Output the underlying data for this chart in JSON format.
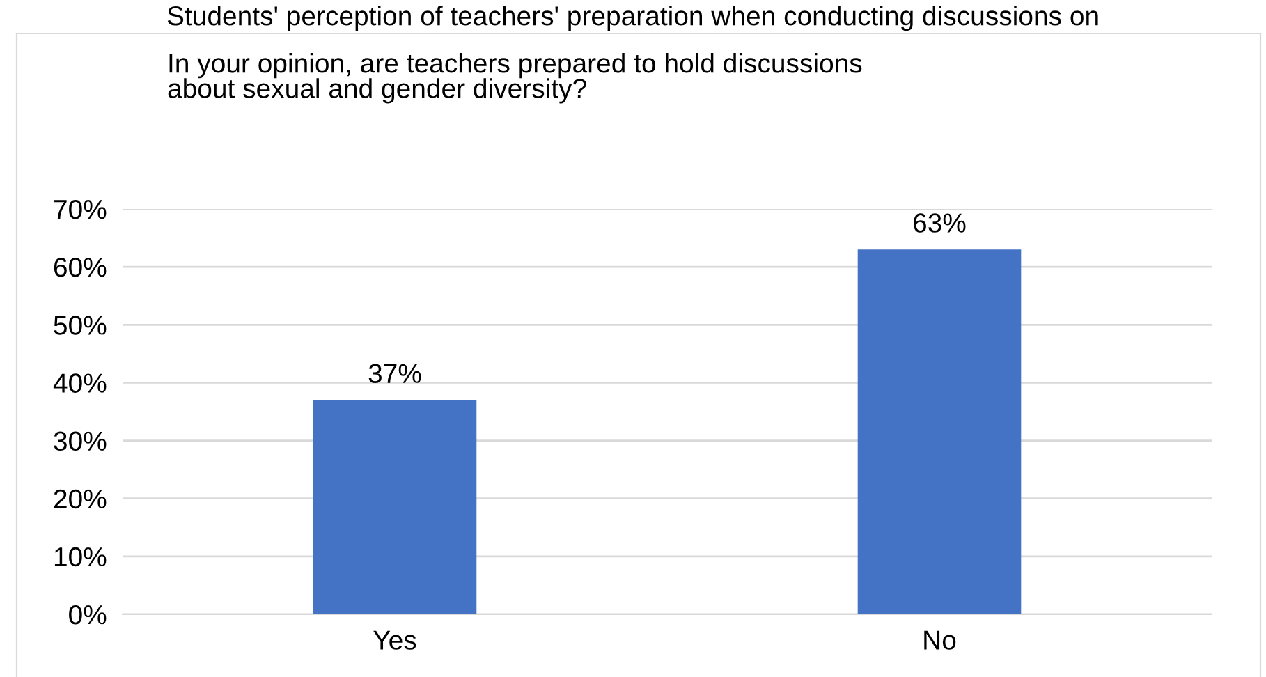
{
  "chart_data": {
    "type": "bar",
    "title": "Students' perception of teachers' preparation when conducting discussions on",
    "subtitle": "In your opinion, are teachers prepared to hold discussions\nabout sexual and gender diversity?",
    "categories": [
      "Yes",
      "No"
    ],
    "values": [
      37,
      63
    ],
    "color": "#4472c4",
    "value_labels": [
      "37%",
      "63%"
    ],
    "ylim": [
      0,
      70
    ],
    "yticks": [
      {
        "value": 0,
        "label": "0%"
      },
      {
        "value": 10,
        "label": "10%"
      },
      {
        "value": 20,
        "label": "20%"
      },
      {
        "value": 30,
        "label": "30%"
      },
      {
        "value": 40,
        "label": "40%"
      },
      {
        "value": 50,
        "label": "50%"
      },
      {
        "value": 60,
        "label": "60%"
      },
      {
        "value": 70,
        "label": "70%"
      }
    ],
    "grid": "y"
  }
}
